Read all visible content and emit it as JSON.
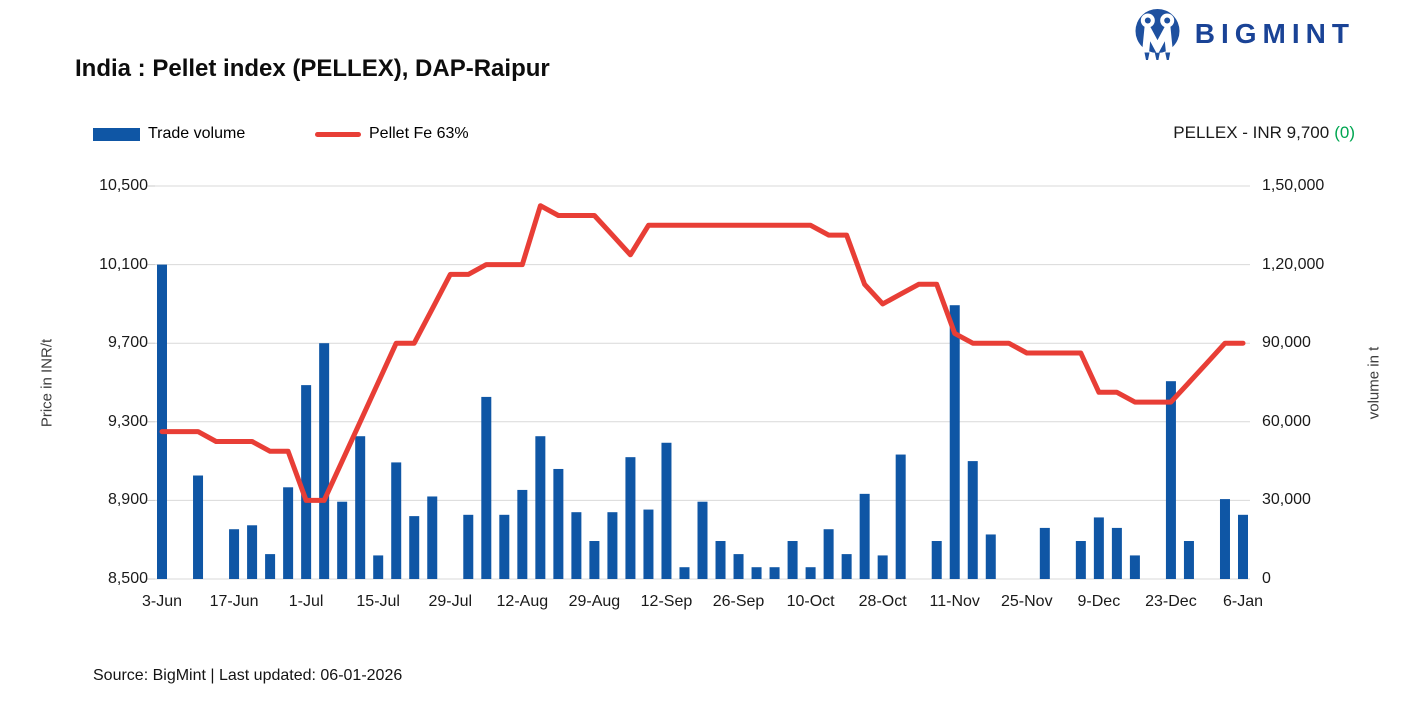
{
  "header": {
    "logo_text": "BIGMINT",
    "title": "India : Pellet index (PELLEX), DAP-Raipur",
    "pellex_label": "PELLEX - INR 9,700",
    "pellex_change": "(0)",
    "pellex_change_color": "#00a651"
  },
  "legend": [
    {
      "label": "Trade volume",
      "type": "bar",
      "color": "#0f56a5"
    },
    {
      "label": "Pellet Fe 63%",
      "type": "line",
      "color": "#e83e36"
    }
  ],
  "footer": {
    "source": "Source: BigMint | Last updated: 06-01-2026"
  },
  "chart_data": {
    "type": "bar+line",
    "title": "India : Pellet index (PELLEX), DAP-Raipur",
    "grid": "horizontal",
    "gridline_color": "#d9d9d9",
    "x_tick_labels": [
      "3-Jun",
      "17-Jun",
      "1-Jul",
      "15-Jul",
      "29-Jul",
      "12-Aug",
      "29-Aug",
      "12-Sep",
      "26-Sep",
      "10-Oct",
      "28-Oct",
      "11-Nov",
      "25-Nov",
      "9-Dec",
      "23-Dec",
      "6-Jan"
    ],
    "x_tick_every": 4,
    "left_axis": {
      "label": "Price in INR/t",
      "min": 8500,
      "max": 10500,
      "tick_values": [
        10500,
        10100,
        9700,
        9300,
        8900,
        8500
      ],
      "ticks": [
        "10,500",
        "10,100",
        "9,700",
        "9,300",
        "8,900",
        "8,500"
      ]
    },
    "right_axis": {
      "label": "volume in t",
      "min": 0,
      "max": 150000,
      "tick_values": [
        150000,
        120000,
        90000,
        60000,
        30000,
        0
      ],
      "ticks": [
        "1,50,000",
        "1,20,000",
        "90,000",
        "60,000",
        "30,000",
        "0"
      ]
    },
    "series": [
      {
        "name": "Trade volume",
        "type": "bar",
        "axis": "right",
        "color": "#0f56a5",
        "values": [
          120000,
          0,
          39500,
          0,
          19000,
          20500,
          9500,
          35000,
          74000,
          90000,
          29500,
          54500,
          9000,
          44500,
          24000,
          31500,
          0,
          24500,
          69500,
          24500,
          34000,
          54500,
          42000,
          25500,
          14500,
          25500,
          46500,
          26500,
          52000,
          4500,
          29500,
          14500,
          9500,
          4500,
          4500,
          14500,
          4500,
          19000,
          9500,
          32500,
          9000,
          47500,
          0,
          14500,
          104500,
          45000,
          17000,
          0,
          0,
          19500,
          0,
          14500,
          23500,
          19500,
          9000,
          0,
          75500,
          14500,
          0,
          30500,
          24500
        ]
      },
      {
        "name": "Pellet Fe 63%",
        "type": "line",
        "axis": "left",
        "color": "#e83e36",
        "values": [
          9250,
          9250,
          9250,
          9200,
          9200,
          9200,
          9150,
          9150,
          8900,
          8900,
          9100,
          9300,
          9500,
          9700,
          9700,
          9875,
          10050,
          10050,
          10100,
          10100,
          10100,
          10400,
          10350,
          10350,
          10350,
          10250,
          10150,
          10300,
          10300,
          10300,
          10300,
          10300,
          10300,
          10300,
          10300,
          10300,
          10300,
          10250,
          10250,
          10000,
          9900,
          9950,
          10000,
          10000,
          9750,
          9700,
          9700,
          9700,
          9650,
          9650,
          9650,
          9650,
          9450,
          9450,
          9400,
          9400,
          9400,
          9500,
          9600,
          9700,
          9700
        ]
      }
    ]
  }
}
